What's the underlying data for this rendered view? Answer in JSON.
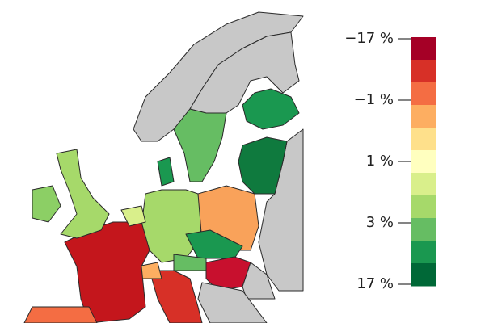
{
  "legend": {
    "ticks": [
      {
        "value": -17,
        "label": "−17 %"
      },
      {
        "value": -1,
        "label": "−1 %"
      },
      {
        "value": 1,
        "label": "1 %"
      },
      {
        "value": 3,
        "label": "3 %"
      },
      {
        "value": 17,
        "label": "17 %"
      }
    ],
    "colors": [
      "#a50026",
      "#d73027",
      "#f46d43",
      "#fdae61",
      "#fee08b",
      "#ffffbf",
      "#d9ef8b",
      "#a6d96a",
      "#66bd63",
      "#1a9850",
      "#006837"
    ]
  }
}
